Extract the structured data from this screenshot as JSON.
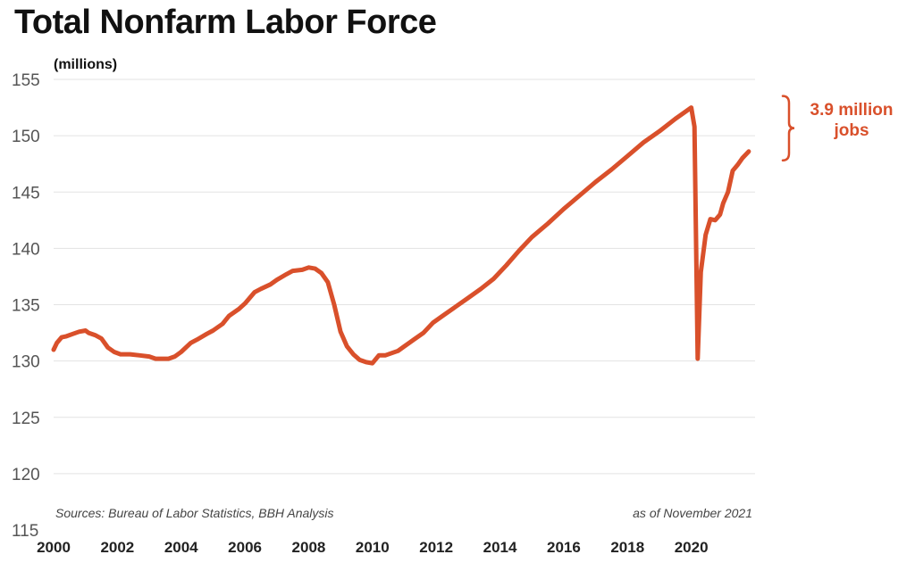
{
  "colors": {
    "line": "#d9502b",
    "grid": "#e3e3e3",
    "annotation": "#d9502b"
  },
  "chart_data": {
    "type": "line",
    "title": "Total Nonfarm Labor Force",
    "ylabel": "(millions)",
    "xlim": [
      2000,
      2022
    ],
    "ylim": [
      115,
      155
    ],
    "yticks": [
      115,
      120,
      125,
      130,
      135,
      140,
      145,
      150,
      155
    ],
    "xticks": [
      "2000",
      "2002",
      "2004",
      "2006",
      "2008",
      "2010",
      "2012",
      "2014",
      "2016",
      "2018",
      "2020"
    ],
    "grid": "horizontal",
    "source": "Sources: Bureau of  Labor Statistics, BBH Analysis",
    "as_of": "as of November 2021",
    "annotation": {
      "line1": "3.9 million",
      "line2": "jobs",
      "from": 152.5,
      "to": 148.6
    },
    "series": [
      {
        "x": [
          2000.0,
          2000.1,
          2000.25,
          2000.4,
          2000.6,
          2000.8,
          2001.0,
          2001.1,
          2001.3,
          2001.5,
          2001.7,
          2001.9,
          2002.1,
          2002.4,
          2002.7,
          2003.0,
          2003.2,
          2003.4,
          2003.6,
          2003.8,
          2004.0,
          2004.3,
          2004.5,
          2004.8,
          2005.0,
          2005.3,
          2005.5,
          2005.8,
          2006.0,
          2006.3,
          2006.5,
          2006.8,
          2007.0,
          2007.3,
          2007.5,
          2007.8,
          2008.0,
          2008.2,
          2008.4,
          2008.6,
          2008.8,
          2009.0,
          2009.2,
          2009.4,
          2009.6,
          2009.8,
          2010.0,
          2010.2,
          2010.4,
          2010.6,
          2010.8,
          2011.0,
          2011.3,
          2011.6,
          2011.9,
          2012.2,
          2012.6,
          2013.0,
          2013.4,
          2013.8,
          2014.2,
          2014.6,
          2015.0,
          2015.5,
          2016.0,
          2016.5,
          2017.0,
          2017.5,
          2018.0,
          2018.5,
          2019.0,
          2019.5,
          2020.0,
          2020.1,
          2020.2,
          2020.3,
          2020.45,
          2020.6,
          2020.75,
          2020.9,
          2021.0,
          2021.15,
          2021.3,
          2021.45,
          2021.6,
          2021.8
        ],
        "values": [
          131.0,
          131.6,
          132.1,
          132.2,
          132.4,
          132.6,
          132.7,
          132.5,
          132.3,
          132.0,
          131.2,
          130.8,
          130.6,
          130.6,
          130.5,
          130.4,
          130.2,
          130.2,
          130.2,
          130.4,
          130.8,
          131.6,
          131.9,
          132.4,
          132.7,
          133.3,
          134.0,
          134.6,
          135.1,
          136.1,
          136.4,
          136.8,
          137.2,
          137.7,
          138.0,
          138.1,
          138.3,
          138.2,
          137.8,
          137.0,
          135.0,
          132.6,
          131.3,
          130.6,
          130.1,
          129.9,
          129.8,
          130.5,
          130.5,
          130.7,
          130.9,
          131.3,
          131.9,
          132.5,
          133.4,
          134.0,
          134.8,
          135.6,
          136.4,
          137.3,
          138.5,
          139.8,
          141.0,
          142.2,
          143.5,
          144.7,
          145.9,
          147.0,
          148.2,
          149.4,
          150.4,
          151.5,
          152.5,
          150.8,
          130.2,
          137.9,
          141.2,
          142.6,
          142.5,
          143.0,
          144.0,
          145.0,
          146.9,
          147.4,
          148.0,
          148.6
        ]
      }
    ]
  }
}
